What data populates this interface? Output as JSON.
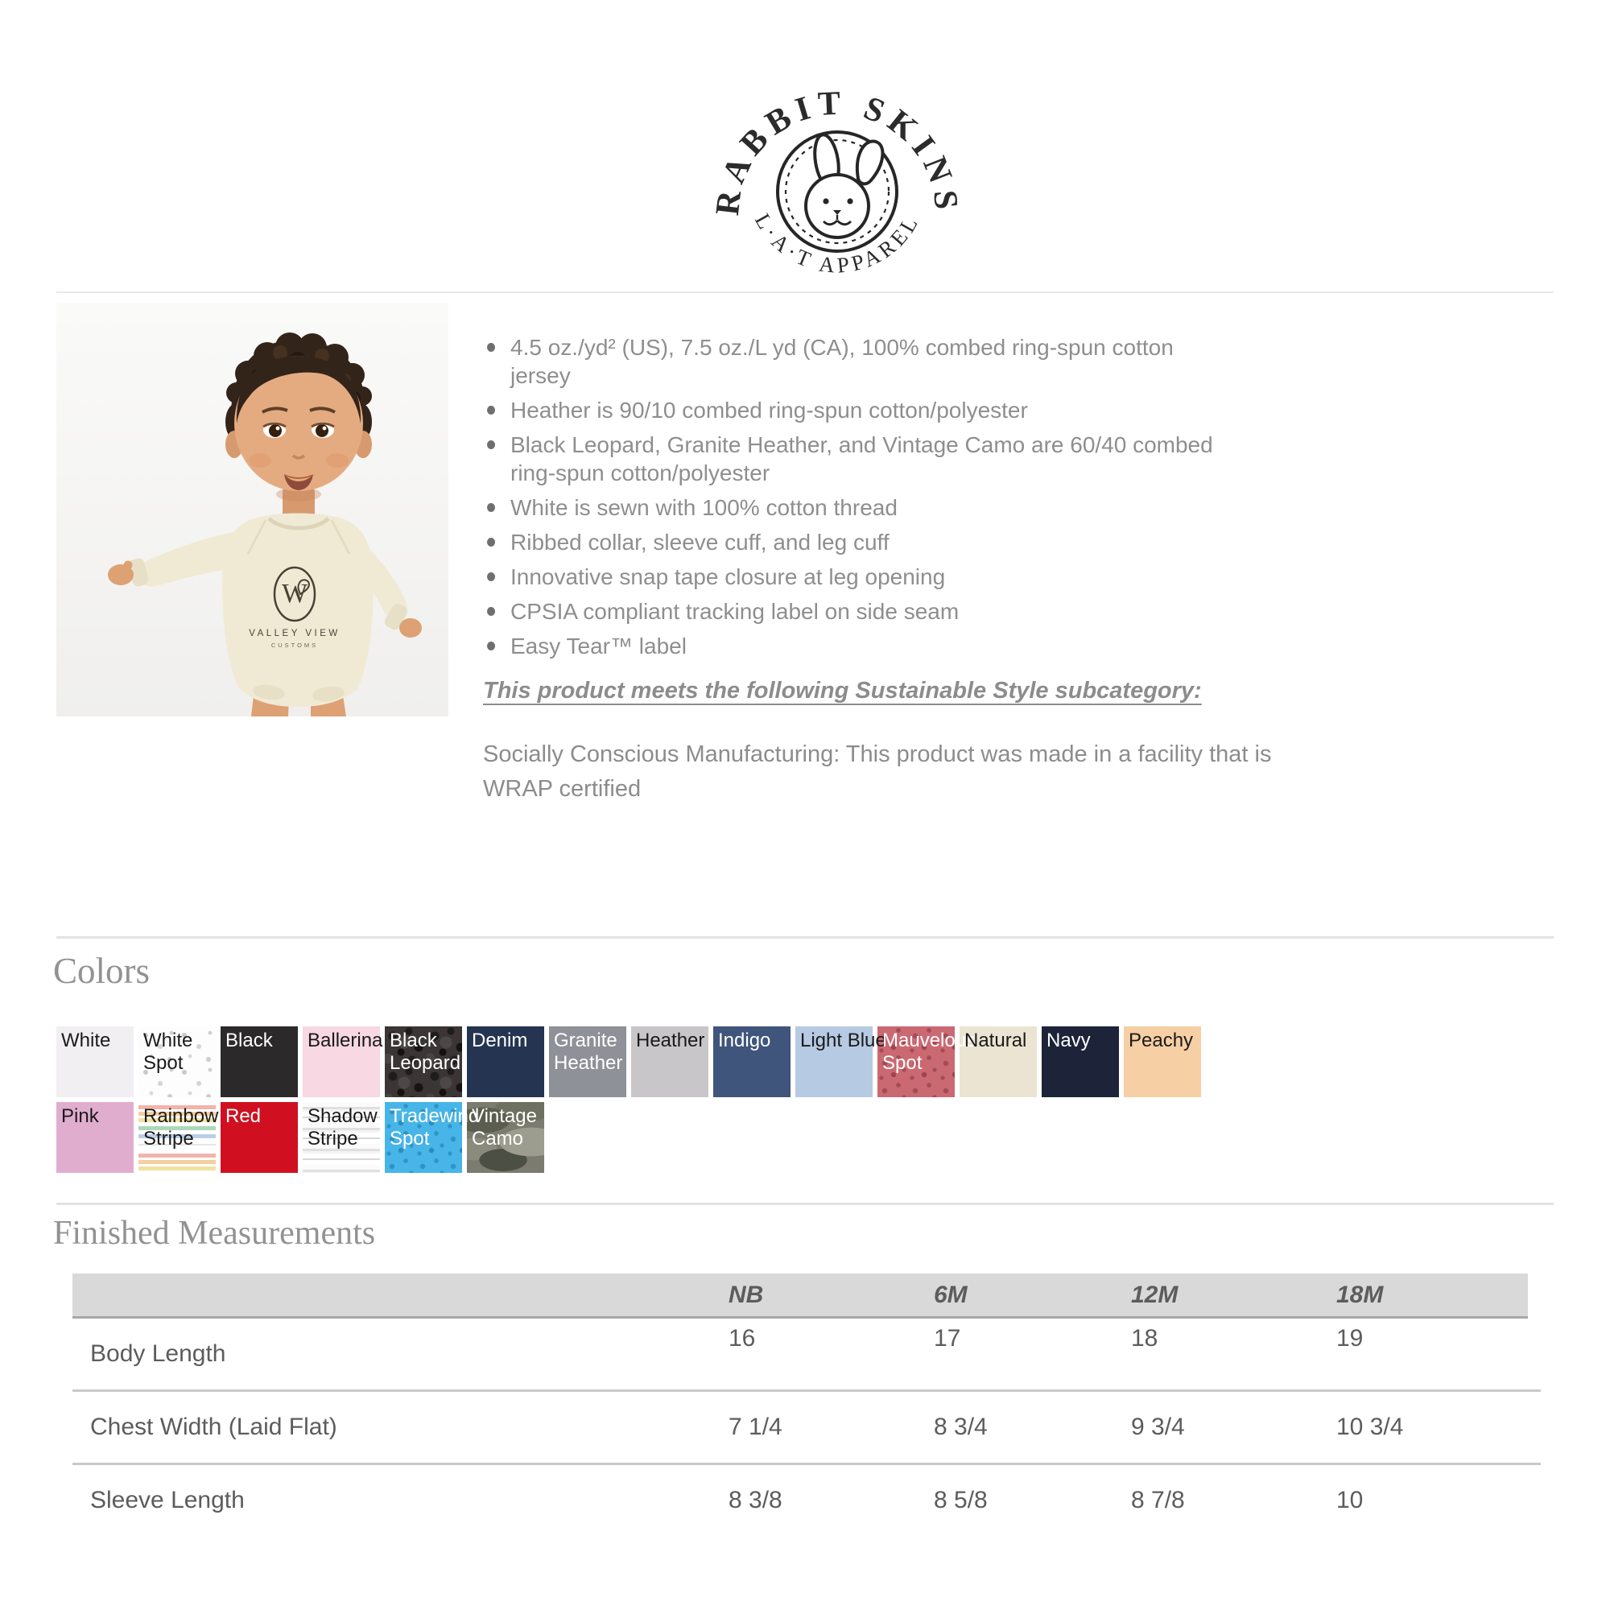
{
  "brand_logo": {
    "arc_top": "RABBIT SKINS",
    "arc_bottom": "L·A·T APPAREL"
  },
  "product_photo": {
    "monogram": "W",
    "shirt_logo_line1": "VALLEY VIEW",
    "shirt_logo_line2": "CUSTOMS"
  },
  "specs": {
    "bullets": [
      "4.5 oz./yd² (US), 7.5 oz./L yd (CA), 100% combed ring-spun cotton jersey",
      "Heather is 90/10 combed ring-spun cotton/polyester",
      "Black Leopard, Granite Heather, and Vintage Camo are 60/40 combed ring-spun cotton/polyester",
      "White is sewn with 100% cotton thread",
      "Ribbed collar, sleeve cuff, and leg cuff",
      "Innovative snap tape closure at leg opening",
      "CPSIA compliant tracking label on side seam",
      "Easy Tear™ label"
    ]
  },
  "sustainability": {
    "heading": "This product meets the following Sustainable Style subcategory:",
    "body": "Socially Conscious Manufacturing: This product was made in a facility that is WRAP certified"
  },
  "colors_section": {
    "title": "Colors",
    "rows": [
      [
        {
          "label": "White",
          "bg": "#f1eff2",
          "text": "#1a1a1a",
          "pattern": "plain"
        },
        {
          "label": "White\nSpot",
          "bg": "#fdfdfd",
          "text": "#1a1a1a",
          "pattern": "white-spot"
        },
        {
          "label": "Black",
          "bg": "#2b292a",
          "text": "#ffffff",
          "pattern": "plain"
        },
        {
          "label": "Ballerina",
          "bg": "#f8d8e2",
          "text": "#1a1a1a",
          "pattern": "plain"
        },
        {
          "label": "Black\nLeopard",
          "bg": "#3b3536",
          "text": "#ffffff",
          "pattern": "leopard"
        },
        {
          "label": "Denim",
          "bg": "#253451",
          "text": "#ffffff",
          "pattern": "plain"
        },
        {
          "label": "Granite\nHeather",
          "bg": "#8e9197",
          "text": "#ffffff",
          "pattern": "plain"
        },
        {
          "label": "Heather",
          "bg": "#c8c6c9",
          "text": "#1a1a1a",
          "pattern": "plain"
        },
        {
          "label": "Indigo",
          "bg": "#40557b",
          "text": "#ffffff",
          "pattern": "plain"
        },
        {
          "label": "Light Blue",
          "bg": "#b7cae4",
          "text": "#1a1a1a",
          "pattern": "plain"
        },
        {
          "label": "Mauvelous\nSpot",
          "bg": "#cb6973",
          "text": "#ffffff",
          "pattern": "mauvelous-spot"
        },
        {
          "label": "Natural",
          "bg": "#ebe4d2",
          "text": "#1a1a1a",
          "pattern": "plain"
        },
        {
          "label": "Navy",
          "bg": "#1d2439",
          "text": "#ffffff",
          "pattern": "plain"
        },
        {
          "label": "Peachy",
          "bg": "#f6cfa4",
          "text": "#1a1a1a",
          "pattern": "plain"
        }
      ],
      [
        {
          "label": "Pink",
          "bg": "#e1adcf",
          "text": "#1a1a1a",
          "pattern": "plain"
        },
        {
          "label": "Rainbow\nStripe",
          "bg": "#ffffff",
          "text": "#1a1a1a",
          "pattern": "rainbow-stripe"
        },
        {
          "label": "Red",
          "bg": "#d01020",
          "text": "#ffffff",
          "pattern": "plain"
        },
        {
          "label": "Shadow\nStripe",
          "bg": "#f5f5f5",
          "text": "#1a1a1a",
          "pattern": "shadow-stripe"
        },
        {
          "label": "Tradewind\nSpot",
          "bg": "#48b5e8",
          "text": "#ffffff",
          "pattern": "tradewind-spot"
        },
        {
          "label": "Vintage\nCamo",
          "bg": "#7b7b6f",
          "text": "#ffffff",
          "pattern": "camo"
        }
      ]
    ]
  },
  "measurements": {
    "title": "Finished Measurements",
    "columns": [
      "NB",
      "6M",
      "12M",
      "18M"
    ],
    "rows": [
      {
        "label": "Body Length",
        "values": [
          "16",
          "17",
          "18",
          "19"
        ]
      },
      {
        "label": "Chest Width (Laid Flat)",
        "values": [
          "7 1/4",
          "8 3/4",
          "9 3/4",
          "10 3/4"
        ]
      },
      {
        "label": "Sleeve Length",
        "values": [
          "8 3/8",
          "8 5/8",
          "8 7/8",
          "10"
        ]
      }
    ]
  }
}
